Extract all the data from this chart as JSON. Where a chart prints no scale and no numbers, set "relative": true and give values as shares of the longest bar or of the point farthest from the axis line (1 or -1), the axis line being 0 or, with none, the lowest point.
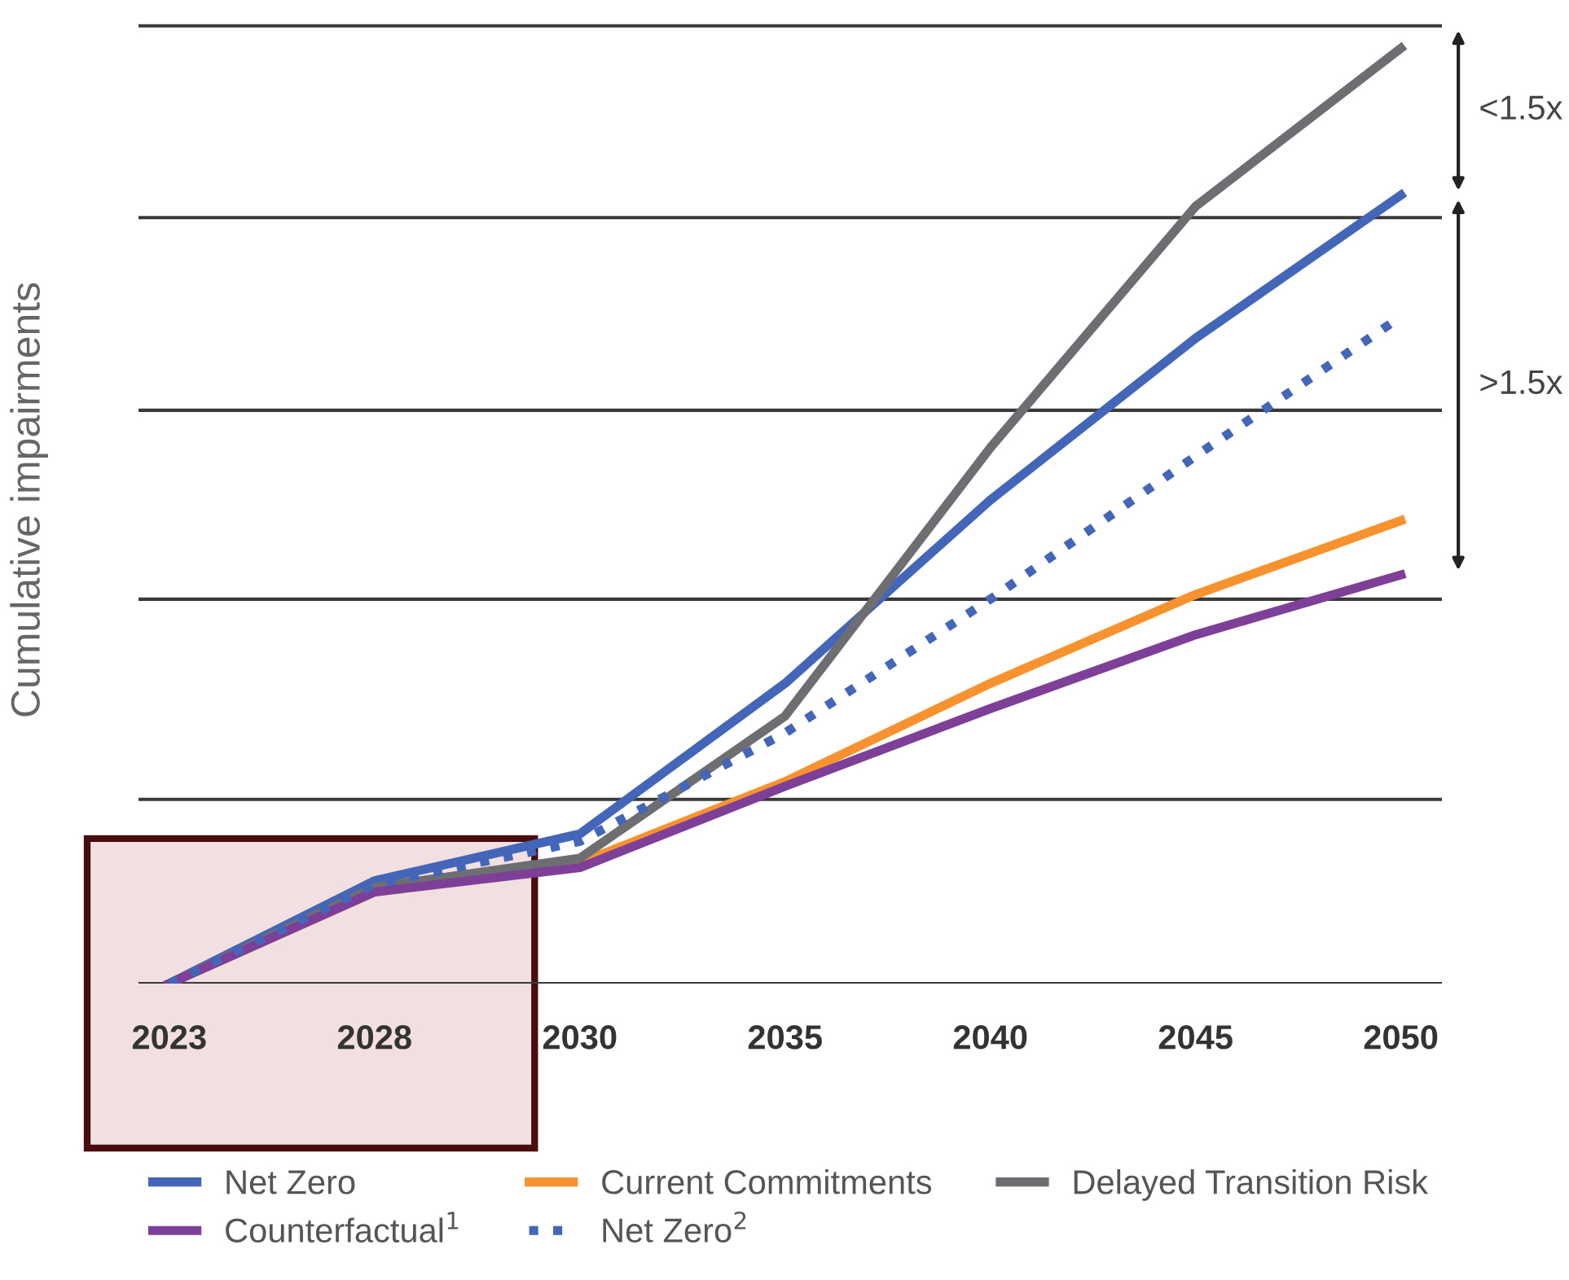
{
  "chart_data": {
    "type": "line",
    "relative": true,
    "ylabel": "Cumulative impairments",
    "categories": [
      "2023",
      "2028",
      "2030",
      "2035",
      "2040",
      "2045",
      "2050"
    ],
    "series": [
      {
        "name": "Net Zero",
        "color": "#4466b8",
        "values": [
          0,
          0.11,
          0.16,
          0.321,
          0.517,
          0.69,
          0.843
        ]
      },
      {
        "name": "Current Commitments",
        "color": "#f7922e",
        "values": [
          0,
          0.098,
          0.129,
          0.216,
          0.321,
          0.416,
          0.495
        ]
      },
      {
        "name": "Delayed Transition Risk",
        "color": "#6d6e71",
        "values": [
          0,
          0.103,
          0.134,
          0.286,
          0.573,
          0.831,
          1.0
        ]
      },
      {
        "name": "Counterfactual$^{1}$",
        "color": "#7d3f98",
        "values": [
          0,
          0.098,
          0.124,
          0.211,
          0.294,
          0.373,
          0.437
        ]
      },
      {
        "name": "Net Zero$^{2}$",
        "color": "#4466b8",
        "line_style": "dotted",
        "values": [
          0,
          0.106,
          0.152,
          0.268,
          0.411,
          0.564,
          0.713
        ]
      }
    ],
    "ref_lines": [
      {
        "axis": "y",
        "value": 0.197,
        "color": "#3a3a3a"
      },
      {
        "axis": "y",
        "value": 0.411,
        "color": "#3a3a3a"
      },
      {
        "axis": "y",
        "value": 0.613,
        "color": "#3a3a3a"
      },
      {
        "axis": "y",
        "value": 0.819,
        "color": "#3a3a3a"
      },
      {
        "axis": "y",
        "value": 1.024,
        "color": "#3a3a3a"
      }
    ],
    "bands": [
      {
        "axis": "x",
        "from": "2023",
        "to": "2030",
        "color": "#f2e0e0"
      }
    ],
    "annotations": [
      "<1.5x",
      ">1.5x"
    ],
    "legend": "bottom",
    "grid": false
  }
}
